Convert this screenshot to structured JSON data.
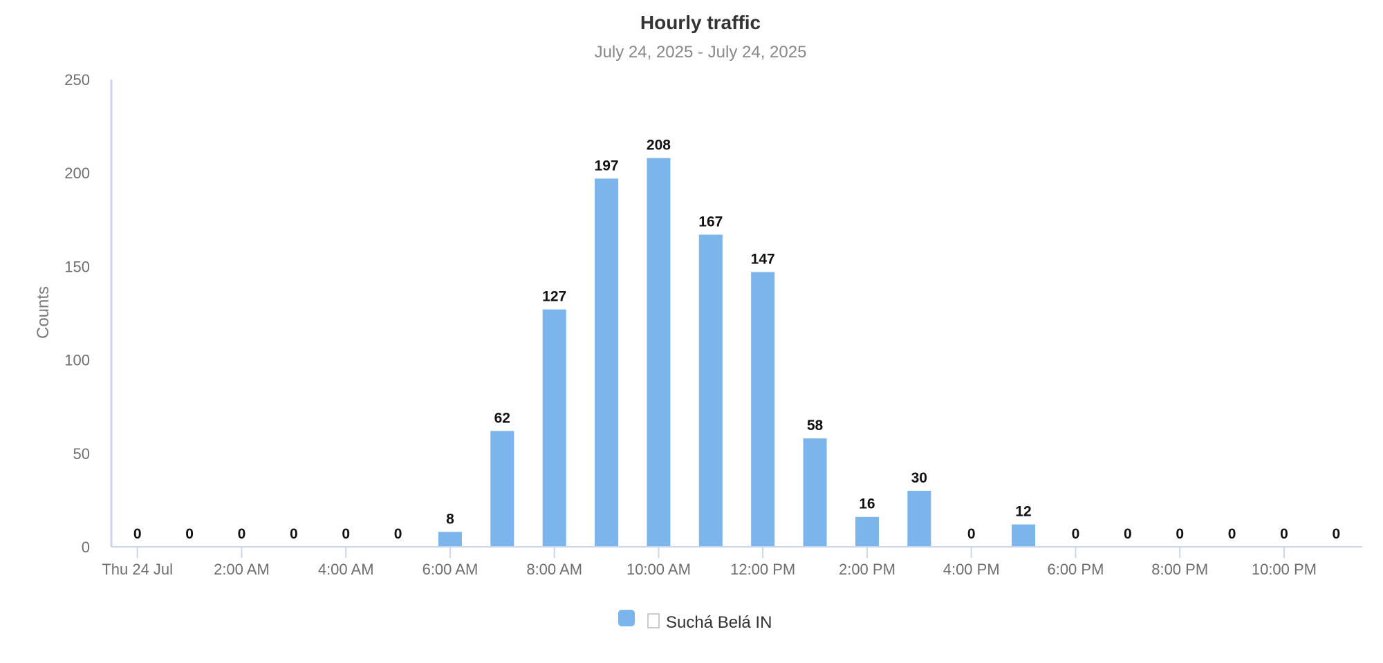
{
  "chart_data": {
    "type": "bar",
    "title": "Hourly traffic",
    "subtitle": "July 24, 2025 - July 24, 2025",
    "ylabel": "Counts",
    "xlabel": "",
    "ylim": [
      0,
      250
    ],
    "yticks": [
      0,
      50,
      100,
      150,
      200,
      250
    ],
    "categories": [
      "12:00 AM",
      "1:00 AM",
      "2:00 AM",
      "3:00 AM",
      "4:00 AM",
      "5:00 AM",
      "6:00 AM",
      "7:00 AM",
      "8:00 AM",
      "9:00 AM",
      "10:00 AM",
      "11:00 AM",
      "12:00 PM",
      "1:00 PM",
      "2:00 PM",
      "3:00 PM",
      "4:00 PM",
      "5:00 PM",
      "6:00 PM",
      "7:00 PM",
      "8:00 PM",
      "9:00 PM",
      "10:00 PM",
      "11:00 PM"
    ],
    "xtick_labels": [
      "Thu 24 Jul",
      "2:00 AM",
      "4:00 AM",
      "6:00 AM",
      "8:00 AM",
      "10:00 AM",
      "12:00 PM",
      "2:00 PM",
      "4:00 PM",
      "6:00 PM",
      "8:00 PM",
      "10:00 PM"
    ],
    "series": [
      {
        "name": "Suchá Belá IN",
        "color": "#7cb5ec",
        "values": [
          0,
          0,
          0,
          0,
          0,
          0,
          8,
          62,
          127,
          197,
          208,
          167,
          147,
          58,
          16,
          30,
          0,
          12,
          0,
          0,
          0,
          0,
          0,
          0
        ]
      }
    ],
    "data_labels": true,
    "grid": false,
    "legend": "bottom-center"
  }
}
